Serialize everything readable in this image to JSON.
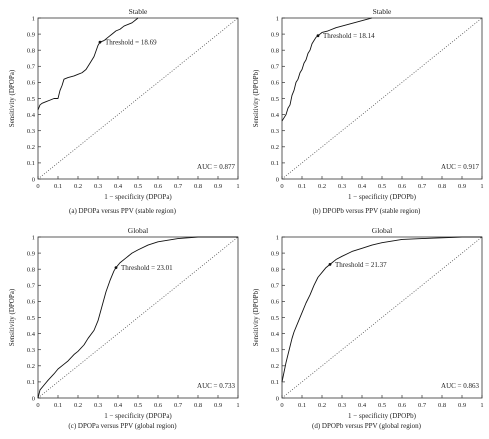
{
  "chart_data": [
    {
      "type": "line",
      "title": "Stable",
      "xlabel": "1 − specificity (DPOPa)",
      "ylabel": "Sensitivity (DPOPa)",
      "xlim": [
        0,
        1
      ],
      "ylim": [
        0,
        1
      ],
      "x_ticks": [
        "0",
        "0.1",
        "0.2",
        "0.3",
        "0.4",
        "0.5",
        "0.6",
        "0.7",
        "0.8",
        "0.9",
        "1"
      ],
      "y_ticks": [
        "0",
        "0.1",
        "0.2",
        "0.3",
        "0.4",
        "0.5",
        "0.6",
        "0.7",
        "0.8",
        "0.9",
        "1"
      ],
      "grid": false,
      "threshold_label": "Threshold = 18.69",
      "threshold_point": [
        0.31,
        0.85
      ],
      "auc_label": "AUC = 0.877",
      "caption": "(a)  DPOPa versus PPV (stable region)",
      "series": [
        {
          "x": [
            0,
            0.01,
            0.02,
            0.04,
            0.06,
            0.08,
            0.1,
            0.11,
            0.12,
            0.13,
            0.15,
            0.18,
            0.2,
            0.22,
            0.24,
            0.26,
            0.28,
            0.3,
            0.31,
            0.33,
            0.35,
            0.37,
            0.39,
            0.41,
            0.43,
            0.45,
            0.47,
            0.49,
            0.5
          ],
          "y": [
            0.43,
            0.46,
            0.47,
            0.48,
            0.49,
            0.5,
            0.5,
            0.55,
            0.58,
            0.62,
            0.63,
            0.64,
            0.65,
            0.66,
            0.68,
            0.72,
            0.76,
            0.83,
            0.85,
            0.86,
            0.88,
            0.9,
            0.92,
            0.93,
            0.95,
            0.96,
            0.97,
            0.99,
            1.0
          ]
        },
        {
          "x": [
            0,
            1
          ],
          "y": [
            0,
            1
          ]
        }
      ]
    },
    {
      "type": "line",
      "title": "Stable",
      "xlabel": "1 − specificity (DPOPb)",
      "ylabel": "Sensitivity (DPOPb)",
      "xlim": [
        0,
        1
      ],
      "ylim": [
        0,
        1
      ],
      "x_ticks": [
        "0",
        "0.1",
        "0.2",
        "0.3",
        "0.4",
        "0.5",
        "0.6",
        "0.7",
        "0.8",
        "0.9",
        "1"
      ],
      "y_ticks": [
        "0",
        "0.1",
        "0.2",
        "0.3",
        "0.4",
        "0.5",
        "0.6",
        "0.7",
        "0.8",
        "0.9",
        "1"
      ],
      "grid": false,
      "threshold_label": "Threshold = 18.14",
      "threshold_point": [
        0.18,
        0.89
      ],
      "auc_label": "AUC = 0.917",
      "caption": "(b)  DPOPb versus PPV (stable region)",
      "series": [
        {
          "x": [
            0,
            0.01,
            0.02,
            0.03,
            0.04,
            0.05,
            0.06,
            0.07,
            0.08,
            0.09,
            0.1,
            0.11,
            0.12,
            0.13,
            0.14,
            0.15,
            0.16,
            0.17,
            0.18,
            0.2,
            0.23,
            0.27,
            0.3,
            0.33,
            0.36,
            0.39,
            0.42,
            0.45
          ],
          "y": [
            0.36,
            0.38,
            0.4,
            0.44,
            0.46,
            0.52,
            0.55,
            0.6,
            0.62,
            0.66,
            0.68,
            0.72,
            0.74,
            0.78,
            0.8,
            0.84,
            0.86,
            0.88,
            0.89,
            0.91,
            0.92,
            0.94,
            0.95,
            0.96,
            0.97,
            0.98,
            0.99,
            1.0
          ]
        },
        {
          "x": [
            0,
            1
          ],
          "y": [
            0,
            1
          ]
        }
      ]
    },
    {
      "type": "line",
      "title": "Global",
      "xlabel": "1 − specificity (DPOPa)",
      "ylabel": "Sensitivity (DPOPa)",
      "xlim": [
        0,
        1
      ],
      "ylim": [
        0,
        1
      ],
      "x_ticks": [
        "0",
        "0.1",
        "0.2",
        "0.3",
        "0.4",
        "0.5",
        "0.6",
        "0.7",
        "0.8",
        "0.9",
        "1"
      ],
      "y_ticks": [
        "0",
        "0.1",
        "0.2",
        "0.3",
        "0.4",
        "0.5",
        "0.6",
        "0.7",
        "0.8",
        "0.9",
        "1"
      ],
      "grid": false,
      "threshold_label": "Threshold = 23.01",
      "threshold_point": [
        0.39,
        0.81
      ],
      "auc_label": "AUC = 0.733",
      "caption": "(c)  DPOPa versus PPV (global region)",
      "series": [
        {
          "x": [
            0,
            0.01,
            0.03,
            0.05,
            0.08,
            0.1,
            0.13,
            0.15,
            0.18,
            0.2,
            0.23,
            0.25,
            0.28,
            0.3,
            0.32,
            0.34,
            0.36,
            0.38,
            0.39,
            0.41,
            0.44,
            0.47,
            0.5,
            0.55,
            0.6,
            0.65,
            0.7,
            0.75,
            0.8,
            0.85,
            0.9,
            0.95,
            1.0
          ],
          "y": [
            0,
            0.05,
            0.08,
            0.11,
            0.15,
            0.18,
            0.21,
            0.23,
            0.27,
            0.29,
            0.33,
            0.37,
            0.42,
            0.48,
            0.57,
            0.66,
            0.73,
            0.79,
            0.81,
            0.84,
            0.87,
            0.9,
            0.92,
            0.95,
            0.97,
            0.98,
            0.99,
            0.995,
            1.0,
            1.0,
            1.0,
            1.0,
            1.0
          ]
        },
        {
          "x": [
            0,
            1
          ],
          "y": [
            0,
            1
          ]
        }
      ]
    },
    {
      "type": "line",
      "title": "Global",
      "xlabel": "1 − specificity (DPOPb)",
      "ylabel": "Sensitivity (DPOPb)",
      "xlim": [
        0,
        1
      ],
      "ylim": [
        0,
        1
      ],
      "x_ticks": [
        "0",
        "0.1",
        "0.2",
        "0.3",
        "0.4",
        "0.5",
        "0.6",
        "0.7",
        "0.8",
        "0.9",
        "1"
      ],
      "y_ticks": [
        "0",
        "0.1",
        "0.2",
        "0.3",
        "0.4",
        "0.5",
        "0.6",
        "0.7",
        "0.8",
        "0.9",
        "1"
      ],
      "grid": false,
      "threshold_label": "Threshold = 21.37",
      "threshold_point": [
        0.24,
        0.83
      ],
      "auc_label": "AUC = 0.863",
      "caption": "(d)  DPOPb versus PPV (global region)",
      "series": [
        {
          "x": [
            0,
            0.01,
            0.02,
            0.03,
            0.04,
            0.05,
            0.06,
            0.08,
            0.1,
            0.12,
            0.14,
            0.16,
            0.18,
            0.2,
            0.22,
            0.24,
            0.27,
            0.3,
            0.35,
            0.4,
            0.45,
            0.5,
            0.55,
            0.6,
            0.7,
            0.8,
            0.9,
            1.0
          ],
          "y": [
            0.1,
            0.16,
            0.22,
            0.27,
            0.32,
            0.37,
            0.41,
            0.47,
            0.53,
            0.59,
            0.64,
            0.7,
            0.75,
            0.78,
            0.81,
            0.83,
            0.86,
            0.88,
            0.91,
            0.93,
            0.95,
            0.965,
            0.975,
            0.985,
            0.99,
            0.995,
            1.0,
            1.0
          ]
        },
        {
          "x": [
            0,
            1
          ],
          "y": [
            0,
            1
          ]
        }
      ]
    }
  ]
}
